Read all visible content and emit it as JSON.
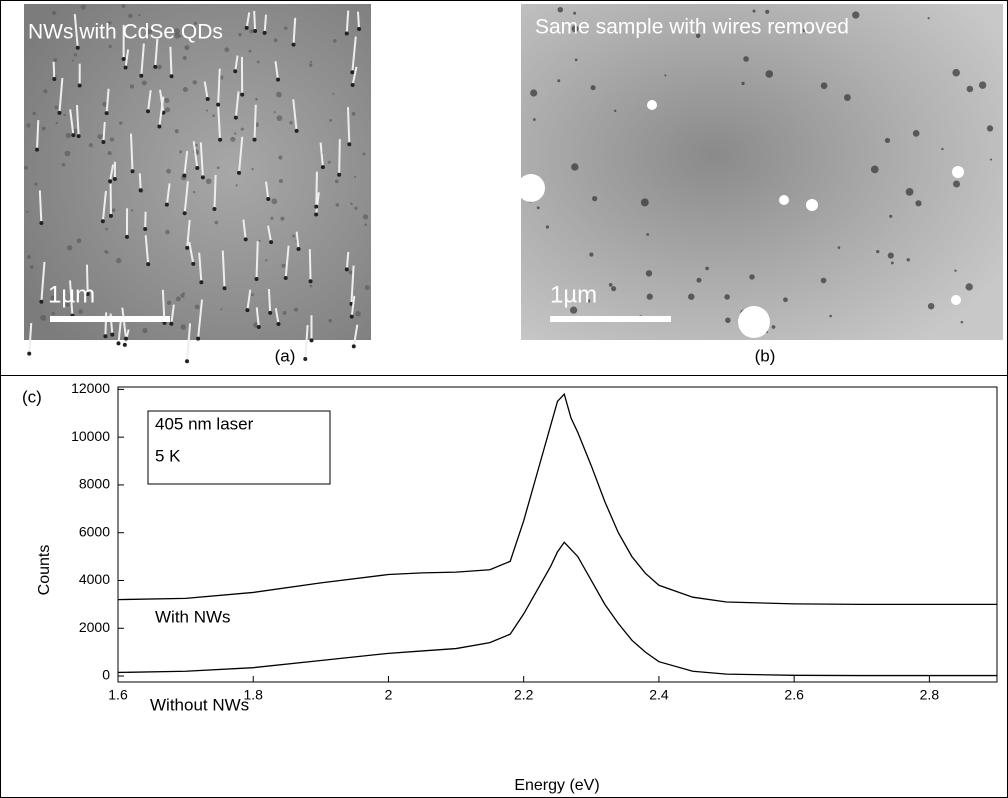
{
  "panels": [
    {
      "overlay_text": "NWs with CdSe QDs",
      "scale_bar": "1µm",
      "caption": "(a)"
    },
    {
      "overlay_text": "Same sample with wires removed",
      "scale_bar": "1µm",
      "caption": "(b)"
    }
  ],
  "chart_data": {
    "type": "line",
    "panel_label": "(c)",
    "annotation": [
      "405 nm laser",
      "5 K"
    ],
    "x_label": "Energy (eV)",
    "y_label": "Counts",
    "x": [
      1.6,
      1.7,
      1.8,
      1.9,
      2.0,
      2.05,
      2.1,
      2.15,
      2.18,
      2.2,
      2.22,
      2.24,
      2.25,
      2.26,
      2.27,
      2.28,
      2.3,
      2.32,
      2.34,
      2.36,
      2.38,
      2.4,
      2.45,
      2.5,
      2.6,
      2.7,
      2.8,
      2.9
    ],
    "series": [
      {
        "name": "With NWs",
        "color": "#000000",
        "values": [
          3200,
          3250,
          3500,
          3900,
          4250,
          4320,
          4350,
          4450,
          4800,
          6500,
          8500,
          10500,
          11500,
          11800,
          10800,
          10200,
          8800,
          7300,
          6000,
          5000,
          4300,
          3800,
          3300,
          3100,
          3020,
          3000,
          3000,
          3000
        ]
      },
      {
        "name": "Without NWs",
        "color": "#000000",
        "values": [
          150,
          200,
          350,
          650,
          950,
          1050,
          1150,
          1400,
          1750,
          2600,
          3600,
          4600,
          5200,
          5600,
          5300,
          5000,
          4000,
          3000,
          2200,
          1500,
          1000,
          600,
          200,
          80,
          30,
          20,
          20,
          20
        ]
      }
    ],
    "xlim": [
      1.6,
      2.9
    ],
    "ylim": [
      -250,
      12100
    ],
    "xticks": [
      1.6,
      1.8,
      2,
      2.2,
      2.4,
      2.6,
      2.8
    ],
    "yticks": [
      0,
      2000,
      4000,
      6000,
      8000,
      10000,
      12000
    ]
  }
}
